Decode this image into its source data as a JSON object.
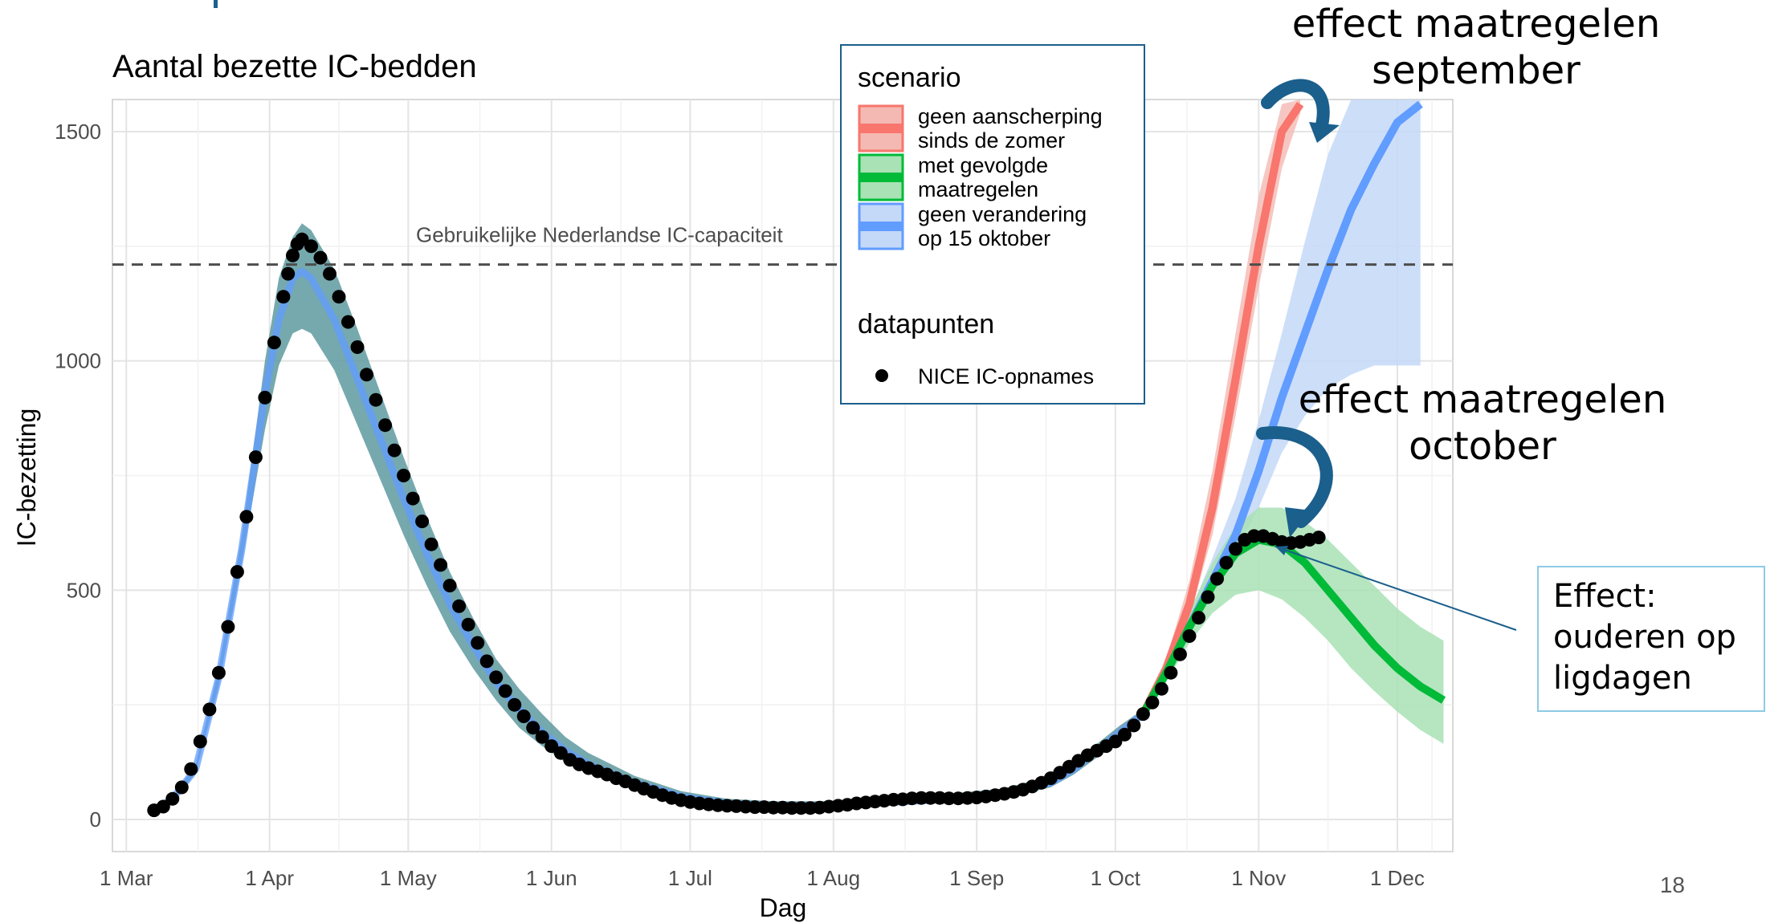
{
  "page_number": "18",
  "chart_data": {
    "type": "line",
    "title": "Aantal bezette IC-bedden",
    "xlabel": "Dag",
    "ylabel": "IC-bezetting",
    "xlim": [
      -3,
      287
    ],
    "ylim": [
      -70,
      1570
    ],
    "x_ticks": [
      {
        "label": "1 Mar",
        "day": 0
      },
      {
        "label": "1 Apr",
        "day": 31
      },
      {
        "label": "1 May",
        "day": 61
      },
      {
        "label": "1 Jun",
        "day": 92
      },
      {
        "label": "1 Jul",
        "day": 122
      },
      {
        "label": "1 Aug",
        "day": 153
      },
      {
        "label": "1 Sep",
        "day": 184
      },
      {
        "label": "1 Oct",
        "day": 214
      },
      {
        "label": "1 Nov",
        "day": 245
      },
      {
        "label": "1 Dec",
        "day": 275
      }
    ],
    "y_ticks": [
      0,
      500,
      1000,
      1500
    ],
    "grid": true,
    "legend_position": "top-right",
    "capacity_line": {
      "value": 1210,
      "label": "Gebruikelijke Nederlandse IC-capaciteit"
    },
    "legend": {
      "scenario_title": "scenario",
      "scenario_items": [
        {
          "key": "red",
          "label_lines": [
            "geen aanscherping",
            " sinds de zomer"
          ]
        },
        {
          "key": "green",
          "label_lines": [
            "met gevolgde",
            " maatregelen"
          ]
        },
        {
          "key": "blue",
          "label_lines": [
            "geen verandering",
            " op 15 oktober"
          ]
        }
      ],
      "points_title": "datapunten",
      "points_item": "NICE IC-opnames"
    },
    "colors": {
      "red": "#f8766d",
      "red_band": "#f4b9b3",
      "green": "#00ba38",
      "green_band": "#a8e2b5",
      "blue": "#619cff",
      "blue_band": "#c4d8f8",
      "teal_band": "#5e9aa0",
      "points": "#000000",
      "capacity": "#4d4d4d",
      "annotation_arrow": "#1b5f8c",
      "box_border": "#8ecae6"
    },
    "series": {
      "observed": {
        "name": "NICE IC-opnames",
        "points": [
          [
            6,
            20
          ],
          [
            8,
            28
          ],
          [
            10,
            45
          ],
          [
            12,
            70
          ],
          [
            14,
            110
          ],
          [
            16,
            170
          ],
          [
            18,
            240
          ],
          [
            20,
            320
          ],
          [
            22,
            420
          ],
          [
            24,
            540
          ],
          [
            26,
            660
          ],
          [
            28,
            790
          ],
          [
            30,
            920
          ],
          [
            32,
            1040
          ],
          [
            34,
            1140
          ],
          [
            35,
            1190
          ],
          [
            36,
            1230
          ],
          [
            37,
            1255
          ],
          [
            38,
            1265
          ],
          [
            40,
            1250
          ],
          [
            42,
            1225
          ],
          [
            44,
            1190
          ],
          [
            46,
            1140
          ],
          [
            48,
            1085
          ],
          [
            50,
            1030
          ],
          [
            52,
            970
          ],
          [
            54,
            915
          ],
          [
            56,
            860
          ],
          [
            58,
            805
          ],
          [
            60,
            750
          ],
          [
            62,
            700
          ],
          [
            64,
            650
          ],
          [
            66,
            600
          ],
          [
            68,
            555
          ],
          [
            70,
            510
          ],
          [
            72,
            465
          ],
          [
            74,
            425
          ],
          [
            76,
            385
          ],
          [
            78,
            345
          ],
          [
            80,
            310
          ],
          [
            82,
            280
          ],
          [
            84,
            250
          ],
          [
            86,
            225
          ],
          [
            88,
            200
          ],
          [
            90,
            180
          ],
          [
            92,
            160
          ],
          [
            94,
            145
          ],
          [
            96,
            130
          ],
          [
            98,
            120
          ],
          [
            100,
            112
          ],
          [
            102,
            105
          ],
          [
            104,
            98
          ],
          [
            106,
            90
          ],
          [
            108,
            83
          ],
          [
            110,
            75
          ],
          [
            112,
            67
          ],
          [
            114,
            60
          ],
          [
            116,
            53
          ],
          [
            118,
            47
          ],
          [
            120,
            42
          ],
          [
            122,
            38
          ],
          [
            124,
            35
          ],
          [
            126,
            33
          ],
          [
            128,
            31
          ],
          [
            130,
            30
          ],
          [
            132,
            29
          ],
          [
            134,
            28
          ],
          [
            136,
            27
          ],
          [
            138,
            27
          ],
          [
            140,
            26
          ],
          [
            142,
            26
          ],
          [
            144,
            25
          ],
          [
            146,
            25
          ],
          [
            148,
            25
          ],
          [
            150,
            26
          ],
          [
            152,
            28
          ],
          [
            154,
            30
          ],
          [
            156,
            32
          ],
          [
            158,
            35
          ],
          [
            160,
            37
          ],
          [
            162,
            39
          ],
          [
            164,
            41
          ],
          [
            166,
            43
          ],
          [
            168,
            44
          ],
          [
            170,
            46
          ],
          [
            172,
            47
          ],
          [
            174,
            47
          ],
          [
            176,
            47
          ],
          [
            178,
            46
          ],
          [
            180,
            46
          ],
          [
            182,
            47
          ],
          [
            184,
            48
          ],
          [
            186,
            50
          ],
          [
            188,
            53
          ],
          [
            190,
            56
          ],
          [
            192,
            60
          ],
          [
            194,
            65
          ],
          [
            196,
            72
          ],
          [
            198,
            80
          ],
          [
            200,
            90
          ],
          [
            202,
            102
          ],
          [
            204,
            115
          ],
          [
            206,
            128
          ],
          [
            208,
            140
          ],
          [
            210,
            150
          ],
          [
            212,
            160
          ],
          [
            214,
            170
          ],
          [
            216,
            185
          ],
          [
            218,
            205
          ],
          [
            220,
            230
          ],
          [
            222,
            255
          ],
          [
            224,
            285
          ],
          [
            226,
            320
          ],
          [
            228,
            360
          ],
          [
            230,
            400
          ],
          [
            232,
            440
          ],
          [
            234,
            485
          ],
          [
            236,
            525
          ],
          [
            238,
            560
          ],
          [
            240,
            590
          ],
          [
            242,
            610
          ],
          [
            244,
            618
          ],
          [
            246,
            618
          ],
          [
            248,
            612
          ],
          [
            250,
            605
          ],
          [
            252,
            603
          ],
          [
            254,
            605
          ],
          [
            256,
            610
          ],
          [
            258,
            615
          ]
        ]
      },
      "red": {
        "name": "geen aanscherping sinds de zomer",
        "x": [
          220,
          225,
          230,
          235,
          240,
          245,
          250,
          254
        ],
        "y": [
          230,
          330,
          470,
          680,
          960,
          1250,
          1500,
          1560
        ],
        "lo": [
          230,
          320,
          440,
          620,
          880,
          1160,
          1420,
          1540
        ],
        "hi": [
          240,
          350,
          520,
          760,
          1060,
          1360,
          1560,
          1570
        ]
      },
      "blue": {
        "name": "geen verandering op 15 oktober",
        "x": [
          220,
          225,
          230,
          235,
          240,
          245,
          250,
          255,
          260,
          265,
          270,
          275,
          280
        ],
        "y": [
          230,
          320,
          420,
          520,
          620,
          760,
          920,
          1060,
          1200,
          1330,
          1430,
          1520,
          1560
        ],
        "lo": [
          220,
          300,
          400,
          490,
          580,
          680,
          800,
          880,
          940,
          970,
          990,
          990,
          990
        ],
        "hi": [
          240,
          340,
          450,
          570,
          700,
          870,
          1060,
          1260,
          1450,
          1570,
          1570,
          1570,
          1570
        ]
      },
      "green": {
        "name": "met gevolgde maatregelen",
        "x": [
          220,
          225,
          230,
          235,
          240,
          245,
          250,
          255,
          260,
          265,
          270,
          275,
          280,
          285
        ],
        "y": [
          230,
          320,
          420,
          510,
          580,
          610,
          600,
          560,
          500,
          440,
          380,
          330,
          290,
          260
        ],
        "lo": [
          225,
          300,
          385,
          450,
          490,
          500,
          480,
          440,
          390,
          330,
          280,
          235,
          195,
          165
        ],
        "hi": [
          235,
          340,
          455,
          560,
          640,
          680,
          680,
          650,
          610,
          560,
          510,
          460,
          420,
          390
        ]
      },
      "fit": {
        "name": "",
        "x": [
          6,
          10,
          15,
          20,
          25,
          30,
          33,
          36,
          38,
          40,
          45,
          50,
          55,
          60,
          65,
          70,
          75,
          80,
          85,
          90,
          95,
          100,
          110,
          120,
          130,
          140,
          150,
          160,
          170,
          180,
          190,
          200,
          205,
          210,
          215,
          220
        ],
        "y": [
          20,
          45,
          110,
          310,
          590,
          930,
          1090,
          1180,
          1195,
          1180,
          1090,
          960,
          830,
          700,
          580,
          470,
          380,
          300,
          240,
          190,
          150,
          120,
          80,
          50,
          35,
          30,
          30,
          35,
          40,
          45,
          55,
          80,
          110,
          150,
          190,
          230
        ],
        "lo": [
          18,
          40,
          100,
          290,
          560,
          850,
          990,
          1060,
          1070,
          1060,
          980,
          860,
          740,
          620,
          510,
          410,
          330,
          260,
          200,
          160,
          125,
          100,
          65,
          40,
          28,
          24,
          24,
          28,
          33,
          38,
          46,
          70,
          98,
          135,
          175,
          220
        ],
        "hi": [
          22,
          50,
          120,
          330,
          620,
          1000,
          1180,
          1270,
          1300,
          1285,
          1200,
          1070,
          930,
          790,
          660,
          540,
          440,
          350,
          285,
          230,
          180,
          145,
          95,
          62,
          45,
          40,
          40,
          45,
          52,
          58,
          68,
          95,
          125,
          165,
          205,
          240
        ]
      }
    },
    "annotations": {
      "september": [
        "effect maatregelen",
        "september"
      ],
      "october": [
        "effect maatregelen",
        "october"
      ],
      "box": [
        "Effect:",
        "ouderen op",
        "ligdagen"
      ]
    }
  }
}
